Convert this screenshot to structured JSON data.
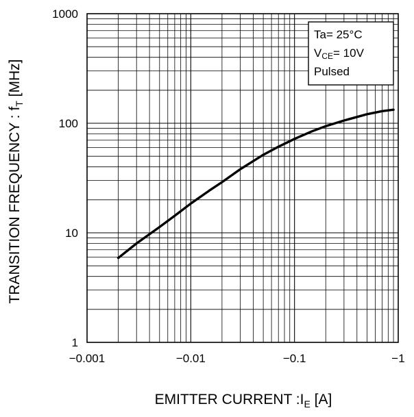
{
  "chart_data": {
    "type": "line",
    "xlabel_main": "EMITTER CURRENT :I",
    "xlabel_sub": "E",
    "xlabel_unit": " [A]",
    "ylabel_main": "TRANSITION FREQUENCY : f",
    "ylabel_sub": "T",
    "ylabel_unit": " [MHz]",
    "x_scale": "log",
    "y_scale": "log",
    "xlim": [
      -0.001,
      -1
    ],
    "ylim": [
      1,
      1000
    ],
    "grid": true,
    "x_ticks": [
      {
        "value": 0.001,
        "label": "−0.001"
      },
      {
        "value": 0.01,
        "label": "−0.01"
      },
      {
        "value": 0.1,
        "label": "−0.1"
      },
      {
        "value": 1,
        "label": "−1"
      }
    ],
    "y_ticks": [
      {
        "value": 1,
        "label": "1"
      },
      {
        "value": 10,
        "label": "10"
      },
      {
        "value": 100,
        "label": "100"
      },
      {
        "value": 1000,
        "label": "1000"
      }
    ],
    "annotation": {
      "line1": "Ta= 25°C",
      "line2_main": "V",
      "line2_sub": "CE",
      "line2_rest": "= 10V",
      "line3": "Pulsed"
    },
    "series": [
      {
        "x": [
          -0.002,
          -0.003,
          -0.005,
          -0.007,
          -0.01,
          -0.015,
          -0.02,
          -0.03,
          -0.05,
          -0.07,
          -0.1,
          -0.15,
          -0.2,
          -0.3,
          -0.5,
          -0.7,
          -0.9
        ],
        "y": [
          5.9,
          8.0,
          11.3,
          14.3,
          18.5,
          24.2,
          29.0,
          38.0,
          51.5,
          61.0,
          72.0,
          85.0,
          94.0,
          106.0,
          121.0,
          129.0,
          133.0
        ]
      }
    ]
  }
}
